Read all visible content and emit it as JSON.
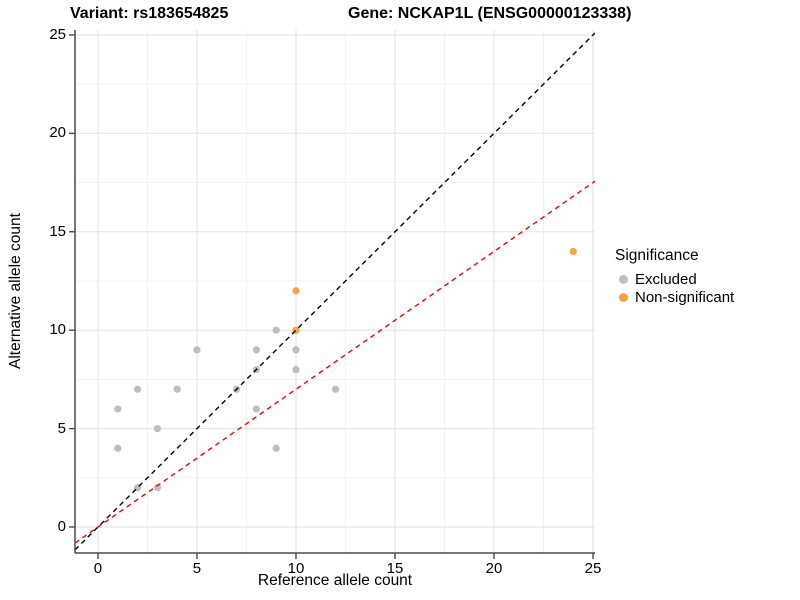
{
  "titles": {
    "variant": "Variant: rs183654825",
    "gene": "Gene: NCKAP1L (ENSG00000123338)"
  },
  "axes": {
    "x": {
      "label": "Reference allele count"
    },
    "y": {
      "label": "Alternative allele count"
    }
  },
  "legend": {
    "title": "Significance",
    "items": [
      {
        "label": "Excluded",
        "color": "#BEBEBE"
      },
      {
        "label": "Non-significant",
        "color": "#F9A33C"
      }
    ]
  },
  "colors": {
    "excluded": "#BEBEBE",
    "non_significant": "#F9A33C",
    "identity_line": "#000000",
    "ratio_line": "#FF0000",
    "grid_major": "#E4E4E4",
    "grid_minor": "#F1F1F1",
    "axis": "#4a4a4a"
  },
  "chart_data": {
    "type": "scatter",
    "title": "Variant: rs183654825   Gene: NCKAP1L (ENSG00000123338)",
    "xlabel": "Reference allele count",
    "ylabel": "Alternative allele count",
    "xlim": [
      -1.16,
      25.1
    ],
    "ylim": [
      -1.32,
      25.25
    ],
    "x_ticks": [
      0,
      5,
      10,
      15,
      20,
      25
    ],
    "y_ticks": [
      0,
      5,
      10,
      15,
      20,
      25
    ],
    "grid": {
      "major": true,
      "minor": true
    },
    "legend_position": "right",
    "series": [
      {
        "name": "Excluded",
        "color": "#BEBEBE",
        "points": [
          [
            1,
            4
          ],
          [
            1,
            6
          ],
          [
            2,
            2
          ],
          [
            2,
            7
          ],
          [
            3,
            2
          ],
          [
            3,
            5
          ],
          [
            4,
            7
          ],
          [
            5,
            9
          ],
          [
            7,
            7
          ],
          [
            8,
            6
          ],
          [
            8,
            8
          ],
          [
            8,
            9
          ],
          [
            9,
            4
          ],
          [
            9,
            10
          ],
          [
            10,
            8
          ],
          [
            10,
            9
          ],
          [
            12,
            7
          ]
        ]
      },
      {
        "name": "Non-significant",
        "color": "#F9A33C",
        "points": [
          [
            10,
            10
          ],
          [
            10,
            12
          ],
          [
            24,
            14
          ]
        ]
      }
    ],
    "reference_lines": [
      {
        "name": "identity",
        "slope": 1,
        "intercept": 0,
        "color": "#000000",
        "dashed": true
      },
      {
        "name": "expected-ratio",
        "slope": 0.7,
        "intercept": 0,
        "color": "#FF0000",
        "dashed": true
      }
    ]
  }
}
